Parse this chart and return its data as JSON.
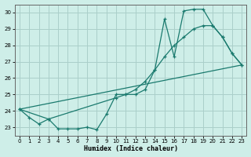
{
  "xlabel": "Humidex (Indice chaleur)",
  "xlim": [
    -0.5,
    23.5
  ],
  "ylim": [
    22.5,
    30.5
  ],
  "xticks": [
    0,
    1,
    2,
    3,
    4,
    5,
    6,
    7,
    8,
    9,
    10,
    11,
    12,
    13,
    14,
    15,
    16,
    17,
    18,
    19,
    20,
    21,
    22,
    23
  ],
  "yticks": [
    23,
    24,
    25,
    26,
    27,
    28,
    29,
    30
  ],
  "background_color": "#ceeee8",
  "grid_color": "#aacfca",
  "line_color": "#1a7a6e",
  "line1_x": [
    0,
    1,
    2,
    3,
    4,
    5,
    6,
    7,
    8,
    9,
    10,
    11,
    12,
    13,
    14,
    15,
    16,
    17,
    18,
    19,
    20,
    21,
    22,
    23
  ],
  "line1_y": [
    24.1,
    23.6,
    23.2,
    23.5,
    22.9,
    22.9,
    22.9,
    23.0,
    22.85,
    23.8,
    25.0,
    25.0,
    25.0,
    25.3,
    26.5,
    29.6,
    27.3,
    30.1,
    30.2,
    30.2,
    29.2,
    28.5,
    27.5,
    26.8
  ],
  "line2_x": [
    0,
    3,
    10,
    11,
    12,
    13,
    14,
    15,
    16,
    17,
    18,
    19,
    20,
    21,
    22,
    23
  ],
  "line2_y": [
    24.1,
    23.5,
    24.8,
    25.0,
    25.3,
    25.8,
    26.5,
    27.3,
    28.0,
    28.5,
    29.0,
    29.2,
    29.2,
    28.5,
    27.5,
    26.8
  ],
  "line3_x": [
    0,
    23
  ],
  "line3_y": [
    24.1,
    26.8
  ]
}
